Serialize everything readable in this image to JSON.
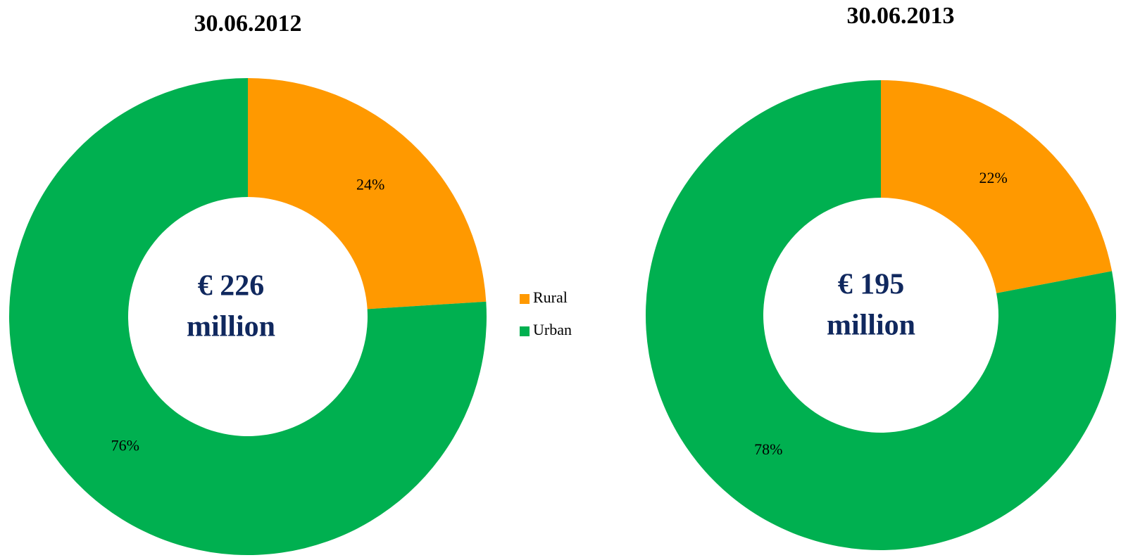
{
  "chart_data": [
    {
      "type": "donut",
      "title": "30.06.2012",
      "center_text": [
        "€ 226",
        "million"
      ],
      "values": [
        24,
        76
      ],
      "value_labels": [
        "24%",
        "76%"
      ]
    },
    {
      "type": "donut",
      "title": "30.06.2013",
      "center_text": [
        "€ 195",
        "million"
      ],
      "values": [
        22,
        78
      ],
      "value_labels": [
        "22%",
        "78%"
      ]
    }
  ],
  "legend": {
    "names": [
      "Rural",
      "Urban"
    ],
    "colors": [
      "#ff9900",
      "#00b050"
    ]
  }
}
